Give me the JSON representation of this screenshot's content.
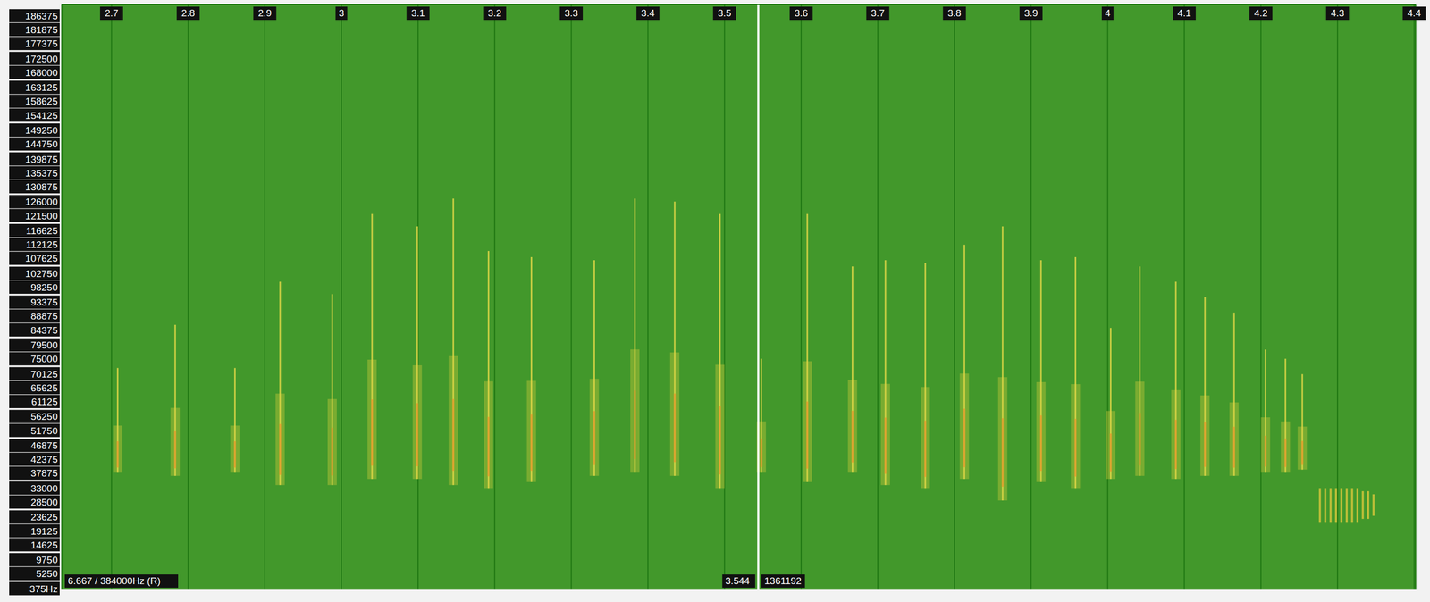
{
  "chart_data": {
    "type": "spectrogram",
    "xlim": [
      2.635,
      4.402
    ],
    "xticks": [
      2.7,
      2.8,
      2.9,
      3,
      3.1,
      3.2,
      3.3,
      3.4,
      3.5,
      3.6,
      3.7,
      3.8,
      3.9,
      4,
      4.1,
      4.2,
      4.3,
      4.4
    ],
    "ylim": [
      0,
      190000
    ],
    "yticks": [
      186375,
      181875,
      177375,
      172500,
      168000,
      163125,
      158625,
      154125,
      149250,
      144750,
      139875,
      135375,
      130875,
      126000,
      121500,
      116625,
      112125,
      107625,
      102750,
      98250,
      93375,
      88875,
      84375,
      79500,
      75000,
      70125,
      65625,
      61125,
      56250,
      51750,
      46875,
      42375,
      37875,
      33000,
      28500,
      23625,
      19125,
      14625,
      9750,
      5250,
      {
        "value": 375,
        "label": "375Hz"
      }
    ],
    "grid": true,
    "info_text": "6.667 / 384000Hz (R)",
    "marker_time": 3.544,
    "sample_count": 1361192,
    "calls": [
      {
        "t": 2.708,
        "f_min": 38000,
        "f_max": 72000
      },
      {
        "t": 2.783,
        "f_min": 37000,
        "f_max": 86000
      },
      {
        "t": 2.861,
        "f_min": 38000,
        "f_max": 72000
      },
      {
        "t": 2.92,
        "f_min": 34000,
        "f_max": 100000
      },
      {
        "t": 2.988,
        "f_min": 34000,
        "f_max": 96000
      },
      {
        "t": 3.04,
        "f_min": 36000,
        "f_max": 122000
      },
      {
        "t": 3.099,
        "f_min": 36000,
        "f_max": 118000
      },
      {
        "t": 3.146,
        "f_min": 34000,
        "f_max": 127000
      },
      {
        "t": 3.192,
        "f_min": 33000,
        "f_max": 110000
      },
      {
        "t": 3.248,
        "f_min": 35000,
        "f_max": 108000
      },
      {
        "t": 3.33,
        "f_min": 37000,
        "f_max": 107000
      },
      {
        "t": 3.383,
        "f_min": 38000,
        "f_max": 127000
      },
      {
        "t": 3.435,
        "f_min": 37000,
        "f_max": 126000
      },
      {
        "t": 3.494,
        "f_min": 33000,
        "f_max": 122000
      },
      {
        "t": 3.548,
        "f_min": 38000,
        "f_max": 75000
      },
      {
        "t": 3.608,
        "f_min": 35000,
        "f_max": 122000
      },
      {
        "t": 3.667,
        "f_min": 38000,
        "f_max": 105000
      },
      {
        "t": 3.71,
        "f_min": 34000,
        "f_max": 107000
      },
      {
        "t": 3.762,
        "f_min": 33000,
        "f_max": 106000
      },
      {
        "t": 3.813,
        "f_min": 36000,
        "f_max": 112000
      },
      {
        "t": 3.863,
        "f_min": 29000,
        "f_max": 118000
      },
      {
        "t": 3.913,
        "f_min": 35000,
        "f_max": 107000
      },
      {
        "t": 3.958,
        "f_min": 33000,
        "f_max": 108000
      },
      {
        "t": 4.004,
        "f_min": 36000,
        "f_max": 85000
      },
      {
        "t": 4.042,
        "f_min": 37000,
        "f_max": 105000
      },
      {
        "t": 4.089,
        "f_min": 36000,
        "f_max": 100000
      },
      {
        "t": 4.127,
        "f_min": 37000,
        "f_max": 95000
      },
      {
        "t": 4.165,
        "f_min": 37000,
        "f_max": 90000
      },
      {
        "t": 4.206,
        "f_min": 38000,
        "f_max": 78000
      },
      {
        "t": 4.232,
        "f_min": 38000,
        "f_max": 75000
      },
      {
        "t": 4.254,
        "f_min": 39000,
        "f_max": 70000
      }
    ],
    "social_call": [
      {
        "t": 4.277,
        "f_min": 22000,
        "f_max": 33000
      },
      {
        "t": 4.284,
        "f_min": 22000,
        "f_max": 33000
      },
      {
        "t": 4.291,
        "f_min": 22000,
        "f_max": 33000
      },
      {
        "t": 4.298,
        "f_min": 22000,
        "f_max": 33000
      },
      {
        "t": 4.305,
        "f_min": 22000,
        "f_max": 33000
      },
      {
        "t": 4.312,
        "f_min": 22000,
        "f_max": 33000
      },
      {
        "t": 4.319,
        "f_min": 22000,
        "f_max": 33000
      },
      {
        "t": 4.326,
        "f_min": 22000,
        "f_max": 33000
      },
      {
        "t": 4.333,
        "f_min": 23000,
        "f_max": 32000
      },
      {
        "t": 4.34,
        "f_min": 23000,
        "f_max": 32000
      },
      {
        "t": 4.347,
        "f_min": 24000,
        "f_max": 31000
      }
    ]
  }
}
